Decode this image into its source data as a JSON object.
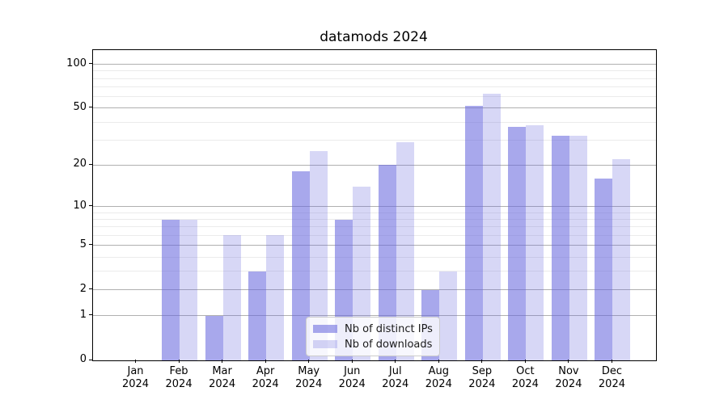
{
  "title": "datamods 2024",
  "legend": {
    "items": [
      {
        "label": "Nb of distinct IPs"
      },
      {
        "label": "Nb of downloads"
      }
    ]
  },
  "chart_data": {
    "type": "bar",
    "title": "datamods 2024",
    "categories": [
      "Jan 2024",
      "Feb 2024",
      "Mar 2024",
      "Apr 2024",
      "May 2024",
      "Jun 2024",
      "Jul 2024",
      "Aug 2024",
      "Sep 2024",
      "Oct 2024",
      "Nov 2024",
      "Dec 2024"
    ],
    "series": [
      {
        "name": "Nb of distinct IPs",
        "values": [
          0,
          8,
          1,
          3,
          18,
          8,
          20,
          2,
          52,
          37,
          32,
          16
        ],
        "color": "rgba(102,102,221,0.57)"
      },
      {
        "name": "Nb of downloads",
        "values": [
          0,
          8,
          6,
          6,
          25,
          14,
          29,
          3,
          63,
          38,
          32,
          22
        ],
        "color": "rgba(102,102,221,0.26)"
      }
    ],
    "xlabel": "",
    "ylabel": "",
    "yscale": "symlog-like (y proportional to log10(1+v))",
    "ylim": [
      0,
      125
    ],
    "y_major_ticks": [
      0,
      1,
      2,
      5,
      10,
      20,
      50,
      100
    ],
    "y_major_tick_labels": [
      "0",
      "1",
      "2",
      "5",
      "10",
      "20",
      "50",
      "100"
    ],
    "y_minor_ticks": [
      3,
      4,
      6,
      7,
      8,
      9,
      30,
      40,
      60,
      70,
      80,
      90
    ],
    "grid": "horizontal major + minor, drawn behind translucent bars",
    "legend_position": "lower center inside plot",
    "colors": {
      "bar_distinct_ips": "rgba(102,102,221,0.57)",
      "bar_downloads": "rgba(102,102,221,0.26)",
      "bar_flat_ips": "#a8a8ee",
      "bar_flat_downloads": "#d7d7f7",
      "major_grid": "#b0b0b0",
      "minor_grid": "#ebebeb",
      "axis": "#000000",
      "background": "#ffffff"
    }
  }
}
